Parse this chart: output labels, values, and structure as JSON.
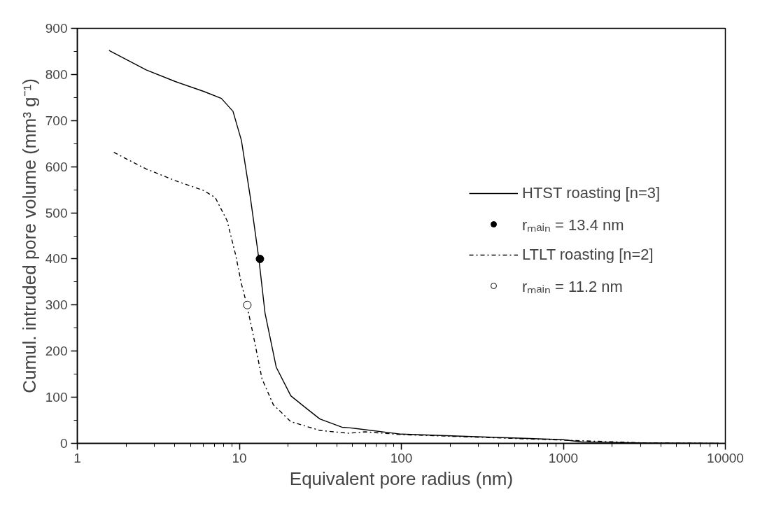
{
  "chart_data": {
    "type": "line",
    "xlabel": "Equivalent pore radius (nm)",
    "ylabel": "Cumul. intruded pore volume (mm³ g⁻¹)",
    "log": "x",
    "xlim": [
      1,
      10000
    ],
    "ylim": [
      0,
      900
    ],
    "xticks": [
      1,
      10,
      100,
      1000,
      10000
    ],
    "yticks": [
      0,
      100,
      200,
      300,
      400,
      500,
      600,
      700,
      800,
      900
    ],
    "grid": false,
    "legend": "right",
    "marker": "none",
    "series": [
      {
        "name": "HTST roasting [n=3]",
        "color": "#000000",
        "line_style": "solid",
        "x": [
          1.57,
          2.66,
          4.0,
          6.05,
          7.75,
          9.14,
          10.3,
          11.7,
          13.2,
          14.4,
          16.9,
          20.8,
          25.5,
          31.4,
          43,
          47.3,
          100,
          386,
          1000,
          1300,
          3200,
          9100
        ],
        "values": [
          852,
          810,
          785,
          763,
          748,
          720,
          657,
          533,
          400,
          283,
          165,
          103,
          78,
          53,
          35,
          34,
          20,
          13,
          8,
          3,
          1,
          0
        ]
      },
      {
        "name": "rₘₐᵢₙ = 13.4 nm",
        "type": "scatter",
        "marker": "circle",
        "color": "#000000",
        "x": [
          13.4
        ],
        "values": [
          400
        ]
      },
      {
        "name": "LTLT roasting [n=2]",
        "color": "#000000",
        "line_style": "dashdot",
        "x": [
          1.68,
          2.66,
          4.0,
          6.05,
          7.1,
          8.4,
          9.5,
          10.3,
          11.1,
          12.2,
          13.8,
          16.2,
          20.8,
          31.4,
          47.3,
          60,
          100,
          386,
          1000,
          3200,
          9100
        ],
        "values": [
          631,
          595,
          570,
          548,
          533,
          483,
          408,
          346,
          302,
          234,
          140,
          84,
          47,
          28,
          22,
          25,
          19,
          12,
          7,
          1,
          0
        ]
      },
      {
        "name": "rₘₐᵢₙ = 11.2 nm",
        "type": "scatter",
        "marker": "circle",
        "color": "#ffffff",
        "x": [
          11.2
        ],
        "values": [
          300
        ]
      }
    ]
  }
}
